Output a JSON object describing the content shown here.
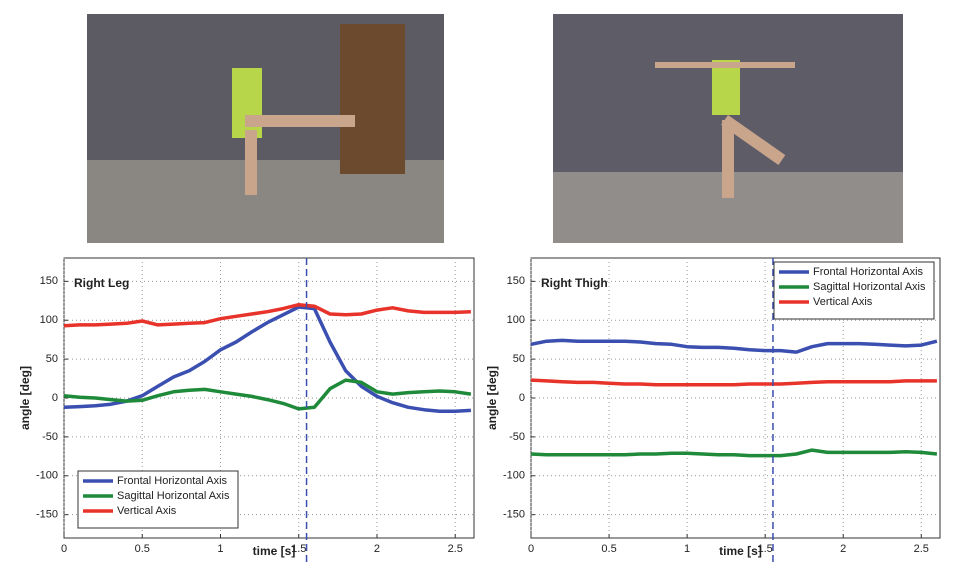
{
  "chart_data": [
    {
      "type": "line",
      "annotation": "Right Leg",
      "xlabel": "time [s]",
      "ylabel": "angle [deg]",
      "x": [
        0,
        0.1,
        0.2,
        0.3,
        0.4,
        0.5,
        0.6,
        0.7,
        0.8,
        0.9,
        1.0,
        1.1,
        1.2,
        1.3,
        1.4,
        1.5,
        1.6,
        1.7,
        1.8,
        1.9,
        2.0,
        2.1,
        2.2,
        2.3,
        2.4,
        2.5,
        2.6
      ],
      "series": [
        {
          "name": "Frontal Horizontal Axis",
          "color": "#3a4fb0",
          "values": [
            -12,
            -11,
            -10,
            -8,
            -4,
            3,
            15,
            27,
            35,
            47,
            62,
            72,
            85,
            97,
            107,
            117,
            115,
            72,
            35,
            15,
            2,
            -6,
            -12,
            -15,
            -17,
            -17,
            -16
          ]
        },
        {
          "name": "Sagittal Horizontal Axis",
          "color": "#1f8a3a",
          "values": [
            3,
            1,
            0,
            -2,
            -4,
            -3,
            3,
            8,
            10,
            11,
            8,
            5,
            2,
            -2,
            -7,
            -14,
            -12,
            12,
            23,
            20,
            8,
            5,
            7,
            8,
            9,
            8,
            5
          ]
        },
        {
          "name": "Vertical Axis",
          "color": "#e8332a",
          "values": [
            93,
            94,
            94,
            95,
            96,
            99,
            94,
            95,
            96,
            97,
            102,
            105,
            108,
            111,
            115,
            120,
            118,
            108,
            107,
            108,
            113,
            116,
            112,
            110,
            110,
            110,
            111
          ]
        }
      ],
      "marker_x": 1.55,
      "xlim": [
        0,
        2.62
      ],
      "ylim": [
        -180,
        180
      ],
      "xticks": [
        0,
        0.5,
        1,
        1.5,
        2,
        2.5
      ],
      "yticks": [
        -150,
        -100,
        -50,
        0,
        50,
        100,
        150
      ],
      "grid": true,
      "legend": "lower left"
    },
    {
      "type": "line",
      "annotation": "Right Thigh",
      "xlabel": "time [s]",
      "ylabel": "angle [deg]",
      "x": [
        0,
        0.1,
        0.2,
        0.3,
        0.4,
        0.5,
        0.6,
        0.7,
        0.8,
        0.9,
        1.0,
        1.1,
        1.2,
        1.3,
        1.4,
        1.5,
        1.6,
        1.7,
        1.8,
        1.9,
        2.0,
        2.1,
        2.2,
        2.3,
        2.4,
        2.5,
        2.6
      ],
      "series": [
        {
          "name": "Frontal Horizontal Axis",
          "color": "#3a4fb0",
          "values": [
            69,
            73,
            74,
            73,
            73,
            73,
            73,
            72,
            70,
            69,
            66,
            65,
            65,
            64,
            62,
            61,
            61,
            59,
            66,
            70,
            70,
            70,
            69,
            68,
            67,
            68,
            73
          ]
        },
        {
          "name": "Sagittal Horizontal Axis",
          "color": "#1f8a3a",
          "values": [
            -72,
            -73,
            -73,
            -73,
            -73,
            -73,
            -73,
            -72,
            -72,
            -71,
            -71,
            -72,
            -73,
            -73,
            -74,
            -74,
            -74,
            -72,
            -67,
            -70,
            -70,
            -70,
            -70,
            -70,
            -69,
            -70,
            -72
          ]
        },
        {
          "name": "Vertical Axis",
          "color": "#e8332a",
          "values": [
            23,
            22,
            21,
            20,
            20,
            19,
            18,
            18,
            17,
            17,
            17,
            17,
            17,
            17,
            18,
            18,
            18,
            19,
            20,
            21,
            21,
            21,
            21,
            21,
            22,
            22,
            22
          ]
        }
      ],
      "marker_x": 1.55,
      "xlim": [
        0,
        2.62
      ],
      "ylim": [
        -180,
        180
      ],
      "xticks": [
        0,
        0.5,
        1,
        1.5,
        2,
        2.5
      ],
      "yticks": [
        -150,
        -100,
        -50,
        0,
        50,
        100,
        150
      ],
      "grid": true,
      "legend": "upper right"
    }
  ]
}
